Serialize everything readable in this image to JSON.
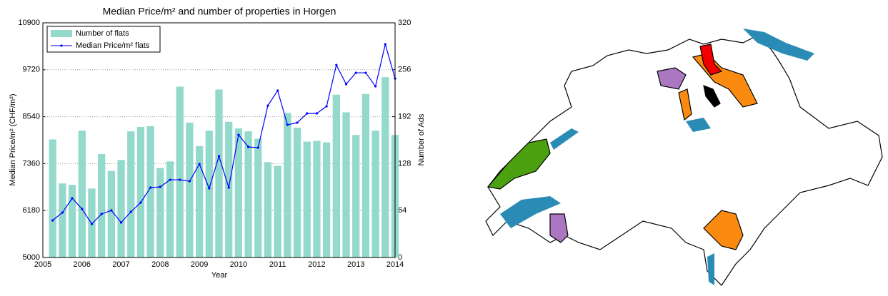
{
  "chart_data": {
    "type": "bar-line",
    "title": "Median Price/m² and number of properties in Horgen",
    "x_label": "Year",
    "y_label": "Median Price/m² (CHF/m²)",
    "y2_label": "Number of Ads",
    "x": [
      2005.25,
      2005.5,
      2005.75,
      2006,
      2006.25,
      2006.5,
      2006.75,
      2007,
      2007.25,
      2007.5,
      2007.75,
      2008,
      2008.25,
      2008.5,
      2008.75,
      2009,
      2009.25,
      2009.5,
      2009.75,
      2010,
      2010.25,
      2010.5,
      2010.75,
      2011,
      2011.25,
      2011.5,
      2011.75,
      2012,
      2012.25,
      2012.5,
      2012.75,
      2013,
      2013.25,
      2013.5,
      2013.75,
      2014
    ],
    "xlim": [
      2005,
      2014
    ],
    "xticks": [
      2005,
      2006,
      2007,
      2008,
      2009,
      2010,
      2011,
      2012,
      2013,
      2014
    ],
    "ylim": [
      5000,
      10900
    ],
    "yticks": [
      5000,
      6180,
      7360,
      8540,
      9720,
      10900
    ],
    "y2lim": [
      0,
      320
    ],
    "y2ticks": [
      0,
      64,
      128,
      192,
      256,
      320
    ],
    "grid": true,
    "legend": "upper-left",
    "series": [
      {
        "name": "Number of flats",
        "kind": "bar",
        "axis": "y2",
        "color": "#93d9cc",
        "values": [
          161,
          101,
          99,
          173,
          94,
          141,
          118,
          133,
          172,
          178,
          179,
          122,
          131,
          233,
          184,
          152,
          173,
          229,
          185,
          176,
          172,
          162,
          130,
          125,
          197,
          177,
          158,
          159,
          157,
          222,
          198,
          167,
          223,
          173,
          246,
          167
        ]
      },
      {
        "name": "Median Price/m² flats",
        "kind": "line",
        "axis": "y",
        "color": "#0000ff",
        "values": [
          5932,
          6130,
          6488,
          6219,
          5843,
          6094,
          6183,
          5879,
          6148,
          6381,
          6757,
          6775,
          6954,
          6954,
          6918,
          7349,
          6739,
          7546,
          6757,
          8084,
          7779,
          7761,
          8819,
          9196,
          8335,
          8389,
          8622,
          8622,
          8801,
          9841,
          9357,
          9644,
          9644,
          9303,
          10361,
          9500
        ]
      }
    ]
  }
}
